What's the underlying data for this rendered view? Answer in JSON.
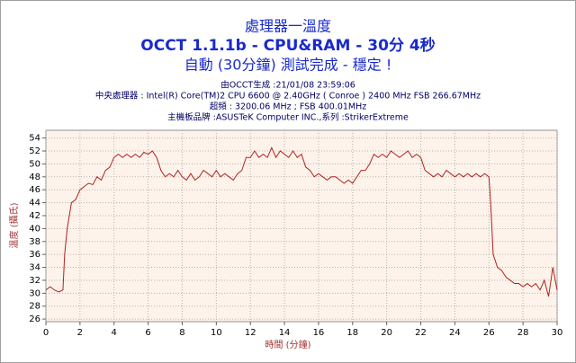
{
  "chart_data": {
    "type": "line",
    "title": "處理器一溫度",
    "subtitle": "OCCT 1.1.1b - CPU&RAM - 30分 4秒",
    "status": "自動 (30分鐘) 測試完成 - 穩定 !",
    "generated": "由OCCT生成 :21/01/08 23:59:06",
    "cpu": "中央處理器 : Intel(R) Core(TM)2 CPU 6600 @ 2.40GHz ( Conroe ) 2400 MHz FSB 266.67MHz",
    "overclock": "超頻 : 3200.06 MHz ; FSB 400.01MHz",
    "motherboard": "主機板品牌 :ASUSTeK Computer INC.,系列 :StrikerExtreme",
    "x_label": "時間 (分鐘)",
    "y_label": "溫度 (攝氏)",
    "color": "#b22222",
    "grid": true,
    "xlim": [
      0,
      30
    ],
    "ylim": [
      25.6,
      55.2
    ],
    "xticks": [
      0,
      2,
      4,
      6,
      8,
      10,
      12,
      14,
      16,
      18,
      20,
      22,
      24,
      26,
      28,
      30
    ],
    "yticks": [
      26,
      28,
      30,
      32,
      34,
      36,
      38,
      40,
      42,
      44,
      46,
      48,
      50,
      52,
      54
    ],
    "x": [
      0,
      0.25,
      0.5,
      0.75,
      1.0,
      1.1,
      1.25,
      1.5,
      1.75,
      2.0,
      2.25,
      2.5,
      2.75,
      3.0,
      3.25,
      3.5,
      3.75,
      4.0,
      4.25,
      4.5,
      4.75,
      5.0,
      5.25,
      5.5,
      5.75,
      6.0,
      6.25,
      6.5,
      6.75,
      7.0,
      7.25,
      7.5,
      7.75,
      8.0,
      8.25,
      8.5,
      8.75,
      9.0,
      9.25,
      9.5,
      9.75,
      10.0,
      10.25,
      10.5,
      10.75,
      11.0,
      11.25,
      11.5,
      11.75,
      12.0,
      12.25,
      12.5,
      12.75,
      13.0,
      13.25,
      13.5,
      13.75,
      14.0,
      14.25,
      14.5,
      14.75,
      15.0,
      15.25,
      15.5,
      15.75,
      16.0,
      16.25,
      16.5,
      16.75,
      17.0,
      17.25,
      17.5,
      17.75,
      18.0,
      18.25,
      18.5,
      18.75,
      19.0,
      19.25,
      19.5,
      19.75,
      20.0,
      20.25,
      20.5,
      20.75,
      21.0,
      21.25,
      21.5,
      21.75,
      22.0,
      22.25,
      22.5,
      22.75,
      23.0,
      23.25,
      23.5,
      23.75,
      24.0,
      24.25,
      24.5,
      24.75,
      25.0,
      25.25,
      25.5,
      25.75,
      26.0,
      26.1,
      26.25,
      26.5,
      26.75,
      27.0,
      27.25,
      27.5,
      27.75,
      28.0,
      28.25,
      28.5,
      28.75,
      29.0,
      29.25,
      29.5,
      29.75,
      30.0
    ],
    "values": [
      30.5,
      31,
      30.5,
      30.2,
      30.5,
      36,
      40,
      44,
      44.5,
      46,
      46.5,
      47,
      46.8,
      48,
      47.5,
      49,
      49.5,
      51,
      51.5,
      51,
      51.5,
      51,
      51.5,
      51,
      51.8,
      51.5,
      52,
      51,
      49,
      48,
      48.5,
      48,
      49,
      48,
      47.5,
      48.5,
      47.5,
      48,
      49,
      48.5,
      48,
      49,
      48,
      48.5,
      48,
      47.5,
      48.5,
      49,
      51,
      51,
      52,
      51,
      51.5,
      51,
      52.5,
      51,
      52,
      51.5,
      51,
      52,
      51,
      51.5,
      49.5,
      49,
      48,
      48.5,
      48,
      47.5,
      48,
      48,
      47.5,
      47,
      47.5,
      47,
      48,
      49,
      49,
      50,
      51.5,
      51,
      51.5,
      51,
      52,
      51.5,
      51,
      51.5,
      52,
      51,
      51.5,
      51,
      49,
      48.5,
      48,
      48.5,
      48,
      49,
      48.5,
      48,
      48.5,
      48,
      48.5,
      48,
      48.5,
      48,
      48.5,
      48,
      44,
      36,
      34,
      33.5,
      32.5,
      32,
      31.5,
      31.5,
      31,
      31.5,
      31,
      31.5,
      30.5,
      32,
      29.5,
      34,
      30.5
    ]
  }
}
